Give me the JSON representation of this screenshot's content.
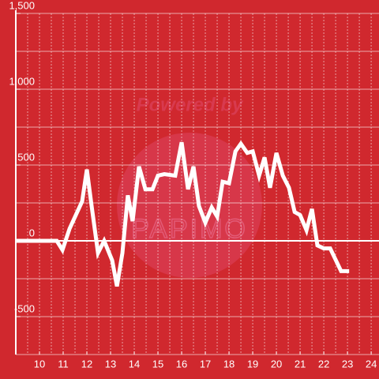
{
  "chart_data": {
    "type": "line",
    "background": "#d0282e",
    "watermark": [
      "Powered by",
      "PAPIMO"
    ],
    "x": [
      9,
      10.73,
      10.97,
      11.27,
      11.8,
      12,
      12.2,
      12.47,
      12.73,
      13.07,
      13.27,
      13.5,
      13.73,
      13.93,
      14.2,
      14.47,
      14.77,
      15,
      15.27,
      15.73,
      16,
      16.27,
      16.5,
      16.73,
      17,
      17.27,
      17.5,
      17.73,
      18,
      18.27,
      18.5,
      18.77,
      19,
      19.27,
      19.5,
      19.73,
      20,
      20.27,
      20.53,
      20.77,
      21,
      21.27,
      21.5,
      21.73,
      22,
      22.27,
      22.73,
      23.07
    ],
    "series": [
      {
        "color": "#ffffff",
        "values": [
          0,
          0,
          -60,
          80,
          260,
          470,
          230,
          -80,
          0,
          -130,
          -300,
          -80,
          300,
          130,
          490,
          340,
          340,
          430,
          440,
          430,
          650,
          340,
          490,
          230,
          120,
          220,
          160,
          390,
          380,
          590,
          640,
          580,
          590,
          430,
          550,
          350,
          580,
          430,
          350,
          190,
          170,
          70,
          210,
          -30,
          -50,
          -50,
          -200,
          -200
        ]
      }
    ],
    "xlim": [
      9,
      24.33
    ],
    "xticks": [
      10,
      11,
      12,
      13,
      14,
      15,
      16,
      17,
      18,
      19,
      20,
      21,
      22,
      23,
      24
    ],
    "ylim": [
      -750,
      1500
    ],
    "yticks": [
      {
        "value": -500,
        "label": "-500"
      },
      0,
      500,
      {
        "value": 1000,
        "label": "1,000"
      },
      {
        "value": 1500,
        "label": "1,500"
      }
    ],
    "ygrid": [
      -750,
      -500,
      -250,
      250,
      500,
      750,
      1000,
      1250,
      1500
    ],
    "xgrid": [
      9.5,
      10,
      10.5,
      11,
      11.5,
      12,
      12.5,
      13,
      13.5,
      14,
      14.5,
      15,
      15.5,
      16,
      16.5,
      17,
      17.5,
      18,
      18.5,
      19,
      19.5,
      20,
      20.5,
      21,
      21.5,
      22,
      22.5,
      23,
      23.5,
      24
    ],
    "grid": true
  }
}
